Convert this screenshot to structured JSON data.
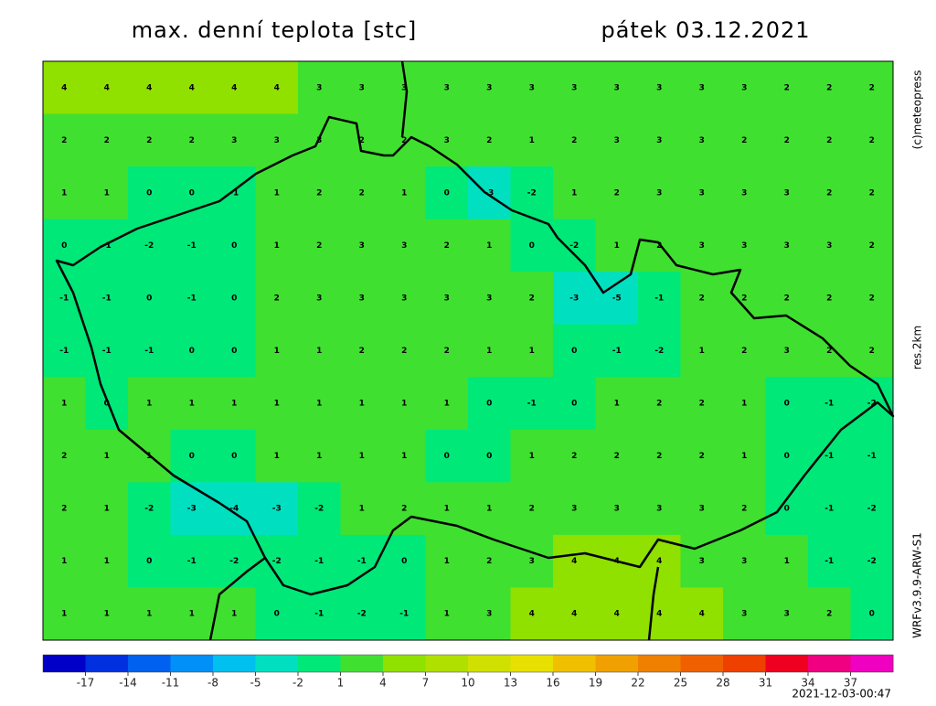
{
  "header": {
    "title": "max. denní teplota [stc]",
    "date": "pátek 03.12.2021"
  },
  "credits": {
    "copyright": "(c)meteopress",
    "resolution": "res.2km",
    "model": "WRFv3.9.9-ARW-S1"
  },
  "footer": {
    "timestamp": "2021-12-03-00:47"
  },
  "grid": {
    "values": [
      [
        4,
        4,
        4,
        4,
        4,
        4,
        3,
        3,
        3,
        3,
        3,
        3,
        3,
        3,
        3,
        3,
        3,
        2,
        2,
        2
      ],
      [
        2,
        2,
        2,
        2,
        3,
        3,
        3,
        2,
        2,
        3,
        2,
        1,
        2,
        3,
        3,
        3,
        2,
        2,
        2,
        2
      ],
      [
        1,
        1,
        0,
        0,
        -1,
        1,
        2,
        2,
        1,
        0,
        -3,
        -2,
        1,
        2,
        3,
        3,
        3,
        3,
        2,
        2
      ],
      [
        0,
        -1,
        -2,
        -1,
        0,
        1,
        2,
        3,
        3,
        2,
        1,
        0,
        -2,
        1,
        2,
        3,
        3,
        3,
        3,
        2
      ],
      [
        -1,
        -1,
        0,
        -1,
        0,
        2,
        3,
        3,
        3,
        3,
        3,
        2,
        -3,
        -5,
        -1,
        2,
        2,
        2,
        2,
        2
      ],
      [
        -1,
        -1,
        -1,
        0,
        0,
        1,
        1,
        2,
        2,
        2,
        1,
        1,
        0,
        -1,
        -2,
        1,
        2,
        3,
        2,
        2
      ],
      [
        1,
        0,
        1,
        1,
        1,
        1,
        1,
        1,
        1,
        1,
        0,
        -1,
        0,
        1,
        2,
        2,
        1,
        0,
        -1,
        -2
      ],
      [
        2,
        1,
        1,
        0,
        0,
        1,
        1,
        1,
        1,
        0,
        0,
        1,
        2,
        2,
        2,
        2,
        1,
        0,
        -1,
        -1
      ],
      [
        2,
        1,
        -2,
        -3,
        -4,
        -3,
        -2,
        1,
        2,
        1,
        1,
        2,
        3,
        3,
        3,
        3,
        2,
        0,
        -1,
        -2
      ],
      [
        1,
        1,
        0,
        -1,
        -2,
        -2,
        -1,
        -1,
        0,
        1,
        2,
        3,
        4,
        4,
        4,
        3,
        3,
        1,
        -1,
        -2
      ],
      [
        1,
        1,
        1,
        1,
        1,
        0,
        -1,
        -2,
        -1,
        1,
        3,
        4,
        4,
        4,
        4,
        4,
        3,
        3,
        2,
        0
      ]
    ]
  },
  "legend": {
    "range": [
      -20,
      40
    ],
    "ticks": [
      -17,
      -14,
      -11,
      -8,
      -5,
      -2,
      1,
      4,
      7,
      10,
      13,
      16,
      19,
      22,
      25,
      28,
      31,
      34,
      37
    ],
    "colors": [
      "#0000c8",
      "#0030e0",
      "#0060f0",
      "#0090f8",
      "#00c0f0",
      "#00e0c0",
      "#00e878",
      "#40e030",
      "#90e000",
      "#b0e000",
      "#d0e000",
      "#e8e000",
      "#f0c000",
      "#f0a000",
      "#f08000",
      "#f06000",
      "#f04000",
      "#f00020",
      "#f00080",
      "#f000c0"
    ]
  }
}
